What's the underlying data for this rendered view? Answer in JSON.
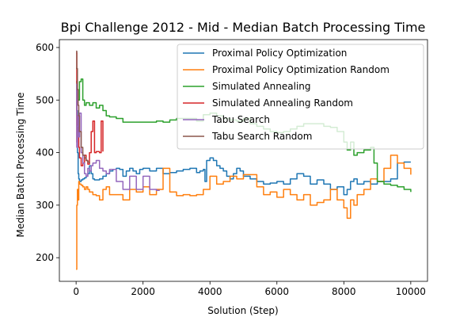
{
  "chart_data": {
    "type": "line",
    "title": "Bpi Challenge 2012 - Mid - Median Batch Processing Time",
    "xlabel": "Solution (Step)",
    "ylabel": "Median Batch Processing Time",
    "xlim": [
      -500,
      10500
    ],
    "ylim": [
      155,
      615
    ],
    "xticks": [
      0,
      2000,
      4000,
      6000,
      8000,
      10000
    ],
    "yticks": [
      200,
      300,
      400,
      500,
      600
    ],
    "grid": false,
    "legend_position": "top-right",
    "series": [
      {
        "name": "Proximal Policy Optimization",
        "color": "#1f77b4",
        "x": [
          0,
          20,
          40,
          60,
          80,
          100,
          150,
          200,
          250,
          300,
          350,
          400,
          450,
          500,
          550,
          600,
          700,
          800,
          900,
          1000,
          1100,
          1200,
          1300,
          1400,
          1500,
          1600,
          1700,
          1800,
          1900,
          2000,
          2200,
          2400,
          2600,
          2800,
          3000,
          3200,
          3400,
          3600,
          3700,
          3800,
          3850,
          3900,
          4000,
          4100,
          4200,
          4300,
          4400,
          4500,
          4600,
          4700,
          4800,
          4900,
          5000,
          5200,
          5400,
          5600,
          5800,
          6000,
          6200,
          6400,
          6600,
          6800,
          7000,
          7200,
          7400,
          7600,
          7800,
          8000,
          8100,
          8200,
          8300,
          8400,
          8600,
          8800,
          9000,
          9200,
          9400,
          9600,
          9800,
          10000
        ],
        "y": [
          535,
          480,
          400,
          360,
          350,
          345,
          348,
          350,
          352,
          355,
          360,
          375,
          360,
          350,
          348,
          348,
          350,
          355,
          360,
          365,
          368,
          370,
          368,
          355,
          365,
          370,
          365,
          360,
          368,
          370,
          365,
          370,
          360,
          362,
          365,
          368,
          370,
          362,
          365,
          368,
          345,
          385,
          390,
          385,
          375,
          370,
          365,
          355,
          350,
          360,
          370,
          365,
          355,
          350,
          345,
          340,
          342,
          345,
          340,
          350,
          360,
          355,
          340,
          348,
          340,
          330,
          335,
          320,
          330,
          345,
          350,
          340,
          345,
          340,
          345,
          345,
          350,
          380,
          382,
          382
        ]
      },
      {
        "name": "Proximal Policy Optimization Random",
        "color": "#ff7f0e",
        "x": [
          0,
          20,
          40,
          60,
          80,
          100,
          150,
          200,
          250,
          300,
          350,
          400,
          500,
          600,
          700,
          800,
          900,
          1000,
          1200,
          1400,
          1600,
          1800,
          2000,
          2200,
          2400,
          2600,
          2800,
          3000,
          3200,
          3400,
          3600,
          3800,
          4000,
          4200,
          4400,
          4600,
          4800,
          5000,
          5200,
          5400,
          5600,
          5800,
          6000,
          6200,
          6400,
          6600,
          6800,
          7000,
          7200,
          7400,
          7600,
          7800,
          8000,
          8100,
          8200,
          8300,
          8400,
          8600,
          8800,
          9000,
          9200,
          9400,
          9600,
          9800,
          10000
        ],
        "y": [
          178,
          300,
          330,
          310,
          345,
          340,
          338,
          335,
          330,
          335,
          330,
          325,
          320,
          318,
          310,
          330,
          335,
          320,
          320,
          310,
          330,
          325,
          335,
          320,
          330,
          370,
          325,
          318,
          320,
          318,
          320,
          330,
          355,
          340,
          345,
          355,
          350,
          358,
          358,
          335,
          320,
          325,
          315,
          330,
          320,
          310,
          320,
          300,
          305,
          310,
          330,
          310,
          295,
          275,
          310,
          300,
          320,
          330,
          350,
          345,
          370,
          395,
          380,
          370,
          358
        ]
      },
      {
        "name": "Simulated Annealing",
        "color": "#2ca02c",
        "x": [
          0,
          30,
          60,
          100,
          150,
          200,
          250,
          300,
          400,
          500,
          600,
          700,
          800,
          900,
          1000,
          1200,
          1400,
          1600,
          1800,
          2000,
          2200,
          2400,
          2600,
          2800,
          3000,
          3200,
          3400,
          3600,
          3800,
          4000,
          4200,
          4400,
          4600,
          4800,
          5000,
          5200,
          5400,
          5600,
          5800,
          6000,
          6200,
          6400,
          6600,
          6800,
          7000,
          7200,
          7400,
          7600,
          7800,
          8000,
          8100,
          8200,
          8300,
          8400,
          8600,
          8800,
          8900,
          9000,
          9200,
          9400,
          9600,
          9800,
          10000
        ],
        "y": [
          560,
          520,
          500,
          535,
          540,
          500,
          490,
          495,
          490,
          495,
          485,
          490,
          480,
          470,
          468,
          465,
          458,
          458,
          458,
          458,
          458,
          460,
          458,
          462,
          465,
          465,
          465,
          460,
          472,
          475,
          470,
          465,
          462,
          460,
          465,
          455,
          450,
          445,
          440,
          438,
          440,
          445,
          450,
          455,
          455,
          455,
          450,
          448,
          440,
          420,
          405,
          420,
          395,
          400,
          405,
          410,
          380,
          345,
          340,
          338,
          335,
          330,
          325
        ]
      },
      {
        "name": "Simulated Annealing Random",
        "color": "#d62728",
        "x": [
          0,
          20,
          40,
          60,
          80,
          100,
          150,
          200,
          250,
          300,
          350,
          400,
          450,
          500,
          550,
          600,
          650,
          700,
          750,
          800
        ],
        "y": [
          590,
          420,
          470,
          440,
          410,
          390,
          375,
          380,
          395,
          385,
          378,
          400,
          440,
          460,
          400,
          402,
          402,
          400,
          460,
          402
        ]
      },
      {
        "name": "Tabu Search",
        "color": "#9467bd",
        "x": [
          0,
          20,
          40,
          60,
          80,
          100,
          150,
          200,
          250,
          300,
          350,
          400,
          450,
          500,
          600,
          700,
          800,
          900,
          1000,
          1200,
          1400,
          1600,
          1800,
          2000,
          2200,
          2400,
          2500
        ],
        "y": [
          530,
          410,
          450,
          470,
          430,
          475,
          400,
          380,
          360,
          355,
          370,
          365,
          375,
          380,
          385,
          370,
          365,
          360,
          368,
          345,
          330,
          355,
          330,
          355,
          330,
          328,
          328
        ]
      },
      {
        "name": "Tabu Search Random",
        "color": "#8c564b",
        "x": [
          0,
          20,
          40,
          60,
          80,
          100,
          150,
          200,
          250,
          300,
          350,
          400
        ],
        "y": [
          593,
          560,
          520,
          490,
          470,
          440,
          410,
          395,
          390,
          385,
          382,
          380
        ]
      }
    ]
  }
}
